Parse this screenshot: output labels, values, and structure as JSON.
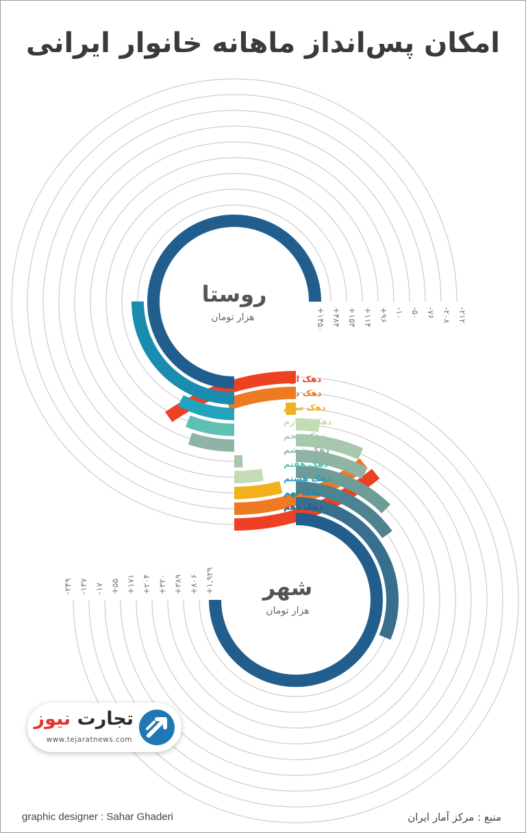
{
  "title": "امکان پس‌انداز ماهانه خانوار ایرانی",
  "chart_data": {
    "type": "radial-bar",
    "unit": "هزار تومان",
    "categories": [
      "دهک اول",
      "دهک دوم",
      "دهک سوم",
      "دهک چهارم",
      "دهک پنجم",
      "دهک ششم",
      "دهک هفتم",
      "دهک هشتم",
      "دهک نهم",
      "دهک دهم"
    ],
    "series": [
      {
        "name": "روستا",
        "values": [
          -212,
          -208,
          -76,
          -50,
          -10,
          96,
          114,
          153,
          484,
          1450
        ],
        "value_labels": [
          "-۲۱۲",
          "-۲۰۸",
          "-۷۶",
          "-۵۰",
          "-۱۰",
          "+۹۶",
          "+۱۱۴",
          "+۱۵۳",
          "+۴۸۴",
          "+۱۴۵۰"
        ]
      },
      {
        "name": "شهر",
        "values": [
          -249,
          -137,
          -17,
          55,
          171,
          204,
          320,
          389,
          806,
          1929
        ],
        "value_labels": [
          "-۲۴۹",
          "-۱۳۷",
          "-۱۷",
          "+۵۵",
          "+۱۷۱",
          "+۲۰۴",
          "+۳۲۰",
          "+۳۸۹",
          "+۸۰۶",
          "+۱,۹۲۹"
        ]
      }
    ],
    "colors": [
      "#ee4022",
      "#ee7a22",
      "#f0b11c",
      "#c4dcb6",
      "#a8c8ae",
      "#8fb4a6",
      "#5fbfb2",
      "#21a2bd",
      "#1a8cb0",
      "#215e8e"
    ],
    "ring_color": "#cfcfcf",
    "rural_bar_colors": [
      "#ee4022",
      "#ee7a22",
      "#f0b11c",
      "#c4dcb6",
      "#a8c8ae",
      "#8fb4a6",
      "#5fbfb2",
      "#21a2bd",
      "#1a8cb0",
      "#215e8e"
    ],
    "urban_bar_colors": [
      "#ee4022",
      "#ee7a22",
      "#f0b11c",
      "#c4dcb6",
      "#a8c8ae",
      "#8fb4a6",
      "#6f9c96",
      "#4d8290",
      "#376f8d",
      "#215e8e"
    ]
  },
  "labels": {
    "rural_title": "روستا",
    "rural_unit": "هزار تومان",
    "urban_title": "شهر",
    "urban_unit": "هزار تومان"
  },
  "logo": {
    "name_dark": "تجارت",
    "name_red": "نیوز",
    "url": "www.tejaratnews.com",
    "mark_color": "#1f78b4"
  },
  "footer": {
    "credit": "graphic designer : Sahar Ghaderi",
    "source": "منبع : مرکز آمار ایران"
  }
}
